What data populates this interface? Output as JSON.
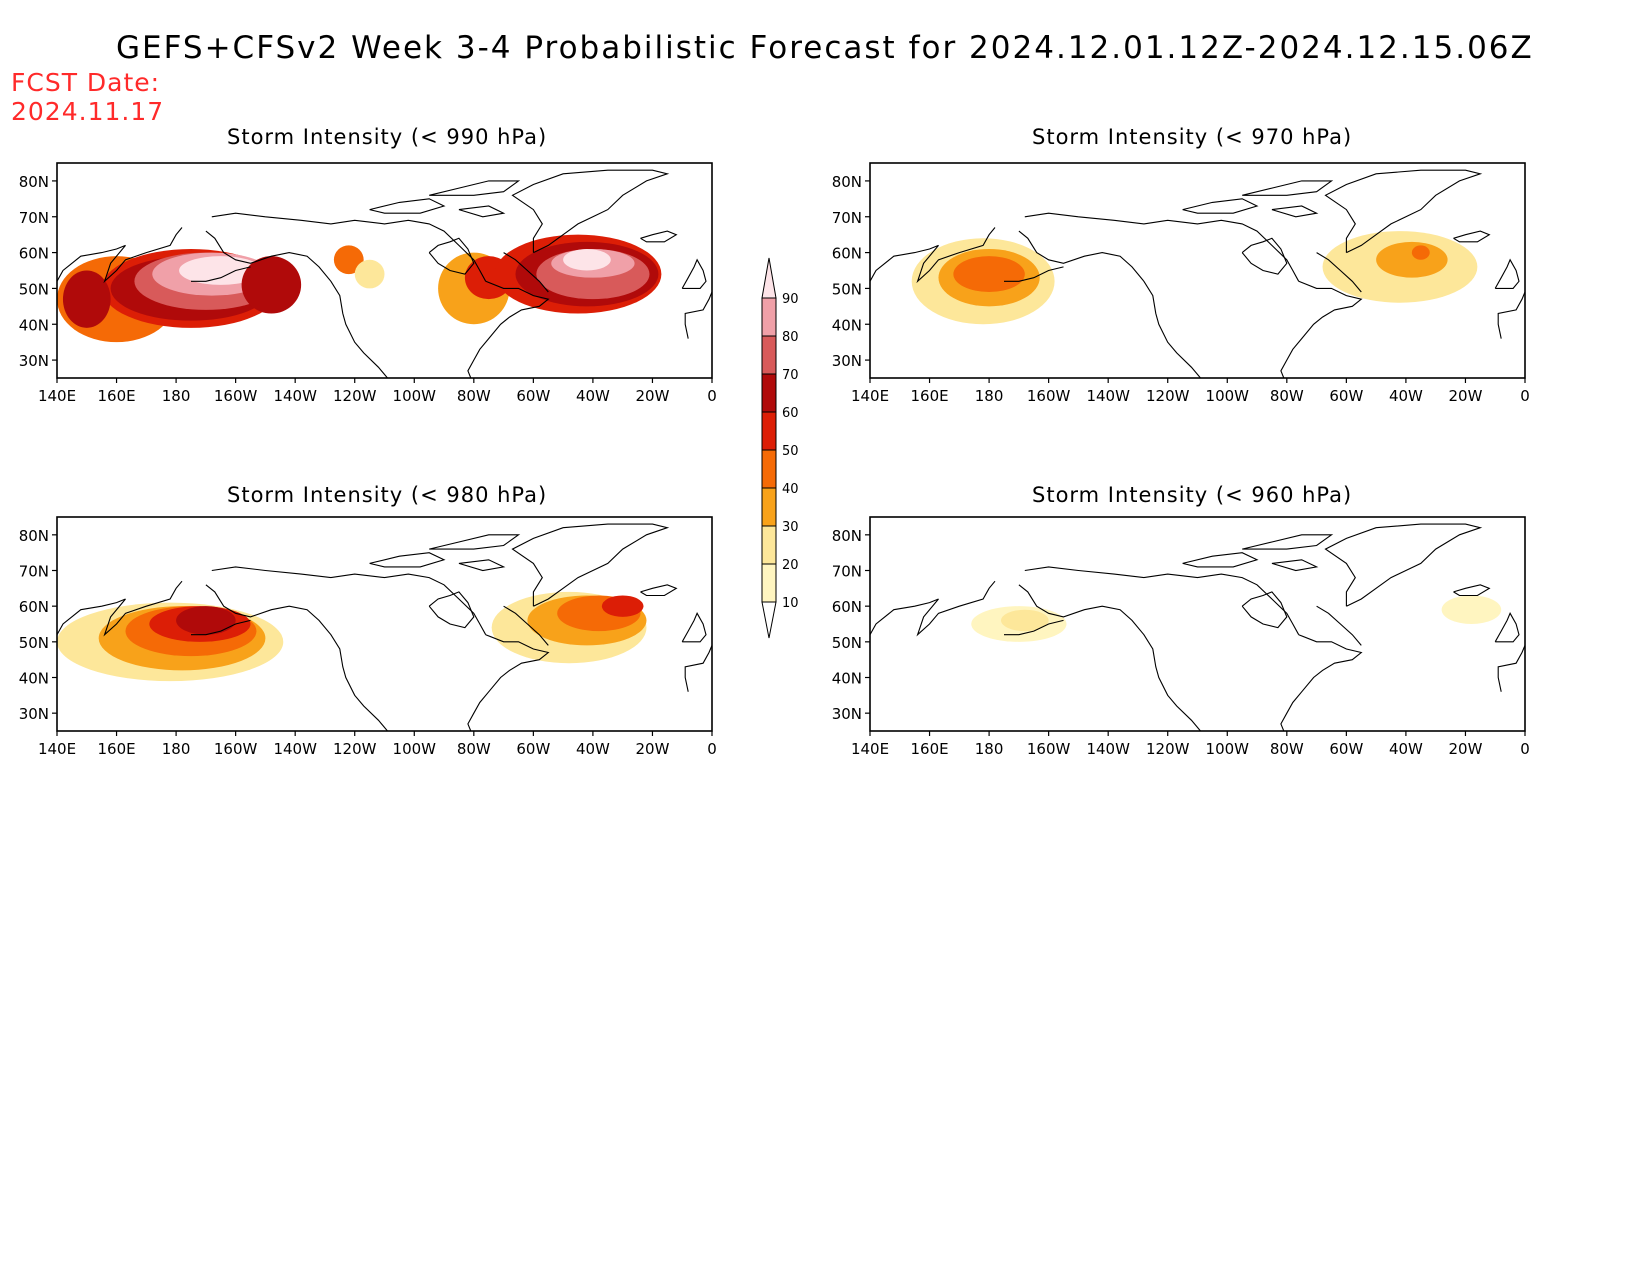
{
  "title": "GEFS+CFSv2 Week 3-4 Probabilistic Forecast for 2024.12.01.12Z-2024.12.15.06Z",
  "fcst_date": {
    "label": "FCST Date:",
    "value": "2024.11.17"
  },
  "colors": {
    "levels": [
      {
        "min": 10,
        "max": 20,
        "color": "#fff5c0"
      },
      {
        "min": 20,
        "max": 30,
        "color": "#fde79a"
      },
      {
        "min": 30,
        "max": 40,
        "color": "#f8a21a"
      },
      {
        "min": 40,
        "max": 50,
        "color": "#f56a06"
      },
      {
        "min": 50,
        "max": 60,
        "color": "#dc1e06"
      },
      {
        "min": 60,
        "max": 70,
        "color": "#b00a0a"
      },
      {
        "min": 70,
        "max": 80,
        "color": "#d85a5a"
      },
      {
        "min": 80,
        "max": 90,
        "color": "#f0a0a8"
      },
      {
        "min": 90,
        "max": 100,
        "color": "#fde4e8"
      }
    ]
  },
  "colorbar": {
    "labels": [
      "90",
      "80",
      "70",
      "60",
      "50",
      "40",
      "30",
      "20",
      "10"
    ]
  },
  "axes": {
    "lon_ticks": [
      "140E",
      "160E",
      "180",
      "160W",
      "140W",
      "120W",
      "100W",
      "80W",
      "60W",
      "40W",
      "20W",
      "0"
    ],
    "lat_ticks": [
      "80N",
      "70N",
      "60N",
      "50N",
      "40N",
      "30N"
    ]
  },
  "panels": [
    {
      "title": "Storm Intensity (< 990 hPa)",
      "blobs": [
        {
          "lon": 160,
          "lat": 47,
          "rx": 20,
          "ry": 12,
          "level": 3
        },
        {
          "lon": 185,
          "lat": 50,
          "rx": 30,
          "ry": 11,
          "level": 4
        },
        {
          "lon": 185,
          "lat": 50,
          "rx": 27,
          "ry": 9,
          "level": 5
        },
        {
          "lon": 190,
          "lat": 52,
          "rx": 24,
          "ry": 8,
          "level": 6
        },
        {
          "lon": 192,
          "lat": 54,
          "rx": 20,
          "ry": 6,
          "level": 7
        },
        {
          "lon": 195,
          "lat": 55,
          "rx": 14,
          "ry": 4,
          "level": 8
        },
        {
          "lon": 150,
          "lat": 47,
          "rx": 8,
          "ry": 8,
          "level": 5
        },
        {
          "lon": 212,
          "lat": 51,
          "rx": 10,
          "ry": 8,
          "level": 5
        },
        {
          "lon": 280,
          "lat": 50,
          "rx": 12,
          "ry": 10,
          "level": 2
        },
        {
          "lon": 285,
          "lat": 53,
          "rx": 8,
          "ry": 6,
          "level": 4
        },
        {
          "lon": 315,
          "lat": 54,
          "rx": 28,
          "ry": 11,
          "level": 4
        },
        {
          "lon": 318,
          "lat": 54,
          "rx": 24,
          "ry": 9,
          "level": 5
        },
        {
          "lon": 320,
          "lat": 54,
          "rx": 19,
          "ry": 7,
          "level": 6
        },
        {
          "lon": 320,
          "lat": 57,
          "rx": 14,
          "ry": 4,
          "level": 7
        },
        {
          "lon": 318,
          "lat": 58,
          "rx": 8,
          "ry": 3,
          "level": 8
        },
        {
          "lon": 238,
          "lat": 58,
          "rx": 5,
          "ry": 4,
          "level": 3
        },
        {
          "lon": 245,
          "lat": 54,
          "rx": 5,
          "ry": 4,
          "level": 1
        }
      ]
    },
    {
      "title": "Storm Intensity (< 970 hPa)",
      "blobs": [
        {
          "lon": 178,
          "lat": 52,
          "rx": 24,
          "ry": 12,
          "level": 1
        },
        {
          "lon": 180,
          "lat": 53,
          "rx": 17,
          "ry": 8,
          "level": 2
        },
        {
          "lon": 180,
          "lat": 54,
          "rx": 12,
          "ry": 5,
          "level": 3
        },
        {
          "lon": 318,
          "lat": 56,
          "rx": 26,
          "ry": 10,
          "level": 1
        },
        {
          "lon": 322,
          "lat": 58,
          "rx": 12,
          "ry": 5,
          "level": 2
        },
        {
          "lon": 325,
          "lat": 60,
          "rx": 3,
          "ry": 2,
          "level": 3
        }
      ]
    },
    {
      "title": "Storm Intensity (< 980 hPa)",
      "blobs": [
        {
          "lon": 178,
          "lat": 50,
          "rx": 38,
          "ry": 11,
          "level": 1
        },
        {
          "lon": 182,
          "lat": 51,
          "rx": 28,
          "ry": 9,
          "level": 2
        },
        {
          "lon": 185,
          "lat": 53,
          "rx": 22,
          "ry": 7,
          "level": 3
        },
        {
          "lon": 188,
          "lat": 55,
          "rx": 17,
          "ry": 5,
          "level": 4
        },
        {
          "lon": 190,
          "lat": 56,
          "rx": 10,
          "ry": 4,
          "level": 5
        },
        {
          "lon": 312,
          "lat": 54,
          "rx": 26,
          "ry": 10,
          "level": 1
        },
        {
          "lon": 318,
          "lat": 56,
          "rx": 20,
          "ry": 7,
          "level": 2
        },
        {
          "lon": 322,
          "lat": 58,
          "rx": 14,
          "ry": 5,
          "level": 3
        },
        {
          "lon": 330,
          "lat": 60,
          "rx": 7,
          "ry": 3,
          "level": 4
        }
      ]
    },
    {
      "title": "Storm Intensity (< 960 hPa)",
      "blobs": [
        {
          "lon": 190,
          "lat": 55,
          "rx": 16,
          "ry": 5,
          "level": 0
        },
        {
          "lon": 192,
          "lat": 56,
          "rx": 8,
          "ry": 3,
          "level": 1
        },
        {
          "lon": 342,
          "lat": 59,
          "rx": 10,
          "ry": 4,
          "level": 0
        }
      ]
    }
  ]
}
